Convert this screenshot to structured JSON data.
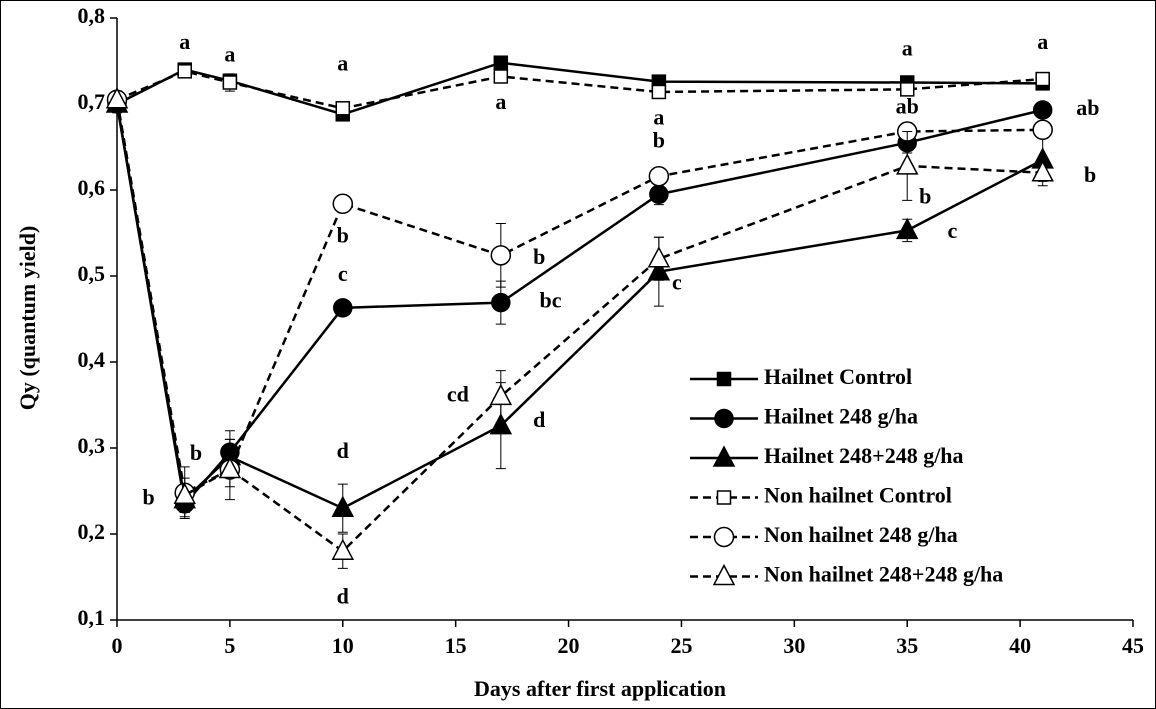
{
  "chart_data": {
    "type": "line",
    "x_label": "Days after first application",
    "y_label": "Qy (quantum yield)",
    "x": [
      0,
      3,
      5,
      10,
      17,
      24,
      35,
      41
    ],
    "xlim": [
      0,
      45
    ],
    "xticks": [
      0,
      5,
      10,
      15,
      20,
      25,
      30,
      35,
      40,
      45
    ],
    "ylim": [
      0.1,
      0.8
    ],
    "yticks": [
      {
        "value": 0.1,
        "label": "0,1"
      },
      {
        "value": 0.2,
        "label": "0,2"
      },
      {
        "value": 0.3,
        "label": "0,3"
      },
      {
        "value": 0.4,
        "label": "0,4"
      },
      {
        "value": 0.5,
        "label": "0,5"
      },
      {
        "value": 0.6,
        "label": "0,6"
      },
      {
        "value": 0.7,
        "label": "0,7"
      },
      {
        "value": 0.8,
        "label": "0,8"
      }
    ],
    "series": [
      {
        "name": "Hailnet Control",
        "color": "#000000",
        "dash": false,
        "marker": "square",
        "filled": true,
        "values": [
          0.7,
          0.74,
          0.727,
          0.688,
          0.748,
          0.726,
          0.725,
          0.724
        ],
        "errors": [
          0.01,
          0.005,
          0.005,
          0.005,
          0.005,
          0.005,
          0.005,
          0.005
        ]
      },
      {
        "name": "Hailnet 248 g/ha",
        "color": "#000000",
        "dash": false,
        "marker": "circle",
        "filled": true,
        "values": [
          0.7,
          0.235,
          0.295,
          0.463,
          0.469,
          0.595,
          0.655,
          0.693
        ],
        "errors": [
          0.01,
          0.015,
          0.025,
          0.008,
          0.025,
          0.012,
          0.012,
          0.008
        ]
      },
      {
        "name": "Hailnet 248+248 g/ha",
        "color": "#000000",
        "dash": false,
        "marker": "triangle",
        "filled": true,
        "values": [
          0.7,
          0.24,
          0.29,
          0.23,
          0.326,
          0.505,
          0.553,
          0.635
        ],
        "errors": [
          0.01,
          0.015,
          0.02,
          0.028,
          0.05,
          0.04,
          0.013,
          0.03
        ]
      },
      {
        "name": "Non hailnet Control",
        "color": "#000000",
        "dash": true,
        "marker": "square",
        "filled": false,
        "values": [
          0.705,
          0.738,
          0.725,
          0.695,
          0.732,
          0.714,
          0.717,
          0.729
        ],
        "errors": [
          0.01,
          0.005,
          0.01,
          0.005,
          0.005,
          0.005,
          0.005,
          0.005
        ]
      },
      {
        "name": "Non hailnet 248 g/ha",
        "color": "#000000",
        "dash": true,
        "marker": "circle",
        "filled": false,
        "values": [
          0.705,
          0.248,
          0.275,
          0.584,
          0.524,
          0.616,
          0.668,
          0.67
        ],
        "errors": [
          0.01,
          0.03,
          0.02,
          0.008,
          0.037,
          0.01,
          0.01,
          0.01
        ]
      },
      {
        "name": "Non hailnet 248+248 g/ha",
        "color": "#000000",
        "dash": true,
        "marker": "triangle",
        "filled": false,
        "values": [
          0.705,
          0.245,
          0.275,
          0.18,
          0.36,
          0.52,
          0.628,
          0.62
        ],
        "errors": [
          0.01,
          0.02,
          0.035,
          0.02,
          0.03,
          0.025,
          0.04,
          0.01
        ]
      }
    ],
    "annotations": [
      "a",
      "a",
      "a",
      "a",
      "a",
      "a",
      "a",
      "ab",
      "ab",
      "b",
      "b",
      "b",
      "c",
      "b",
      "b",
      "c",
      "bc",
      "c",
      "cd",
      "d",
      "d",
      "d",
      "b",
      "b"
    ]
  }
}
